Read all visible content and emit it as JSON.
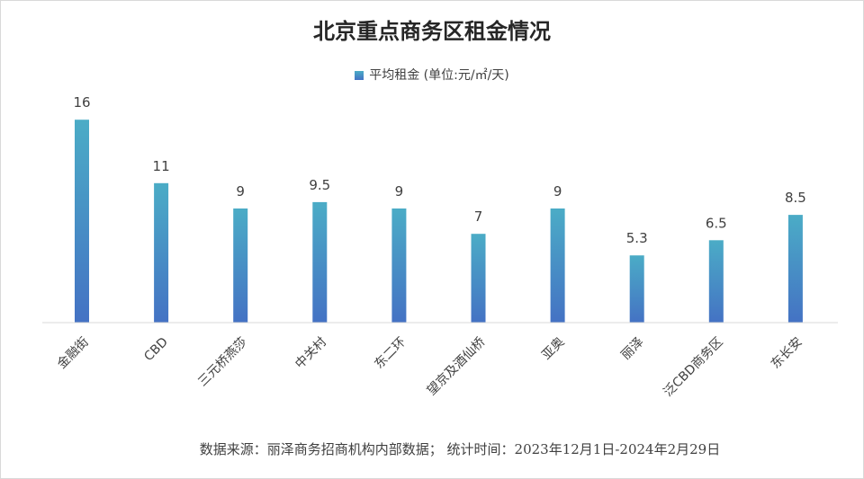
{
  "chart_data": {
    "type": "bar",
    "title": "北京重点商务区租金情况",
    "categories": [
      "金融街",
      "CBD",
      "三元桥燕莎",
      "中关村",
      "东二环",
      "望京及酒仙桥",
      "亚奥",
      "丽泽",
      "泛CBD商务区",
      "东长安"
    ],
    "series": [
      {
        "name": "平均租金 (单位:元/㎡/天)",
        "values": [
          16,
          11,
          9,
          9.5,
          9,
          7,
          9,
          5.3,
          6.5,
          8.5
        ]
      }
    ],
    "data_labels": [
      "16",
      "11",
      "9",
      "9.5",
      "9",
      "7",
      "9",
      "5.3",
      "6.5",
      "8.5"
    ],
    "ylim": [
      0,
      18
    ],
    "grid": false,
    "legend_position": "top",
    "bar_colors": {
      "top": "#4bacc6",
      "bottom": "#4472c4"
    },
    "baseline_color": "#d9d9d9"
  },
  "footer": {
    "source": "数据来源：丽泽商务招商机构内部数据； 统计时间：2023年12月1日-2024年2月29日"
  }
}
